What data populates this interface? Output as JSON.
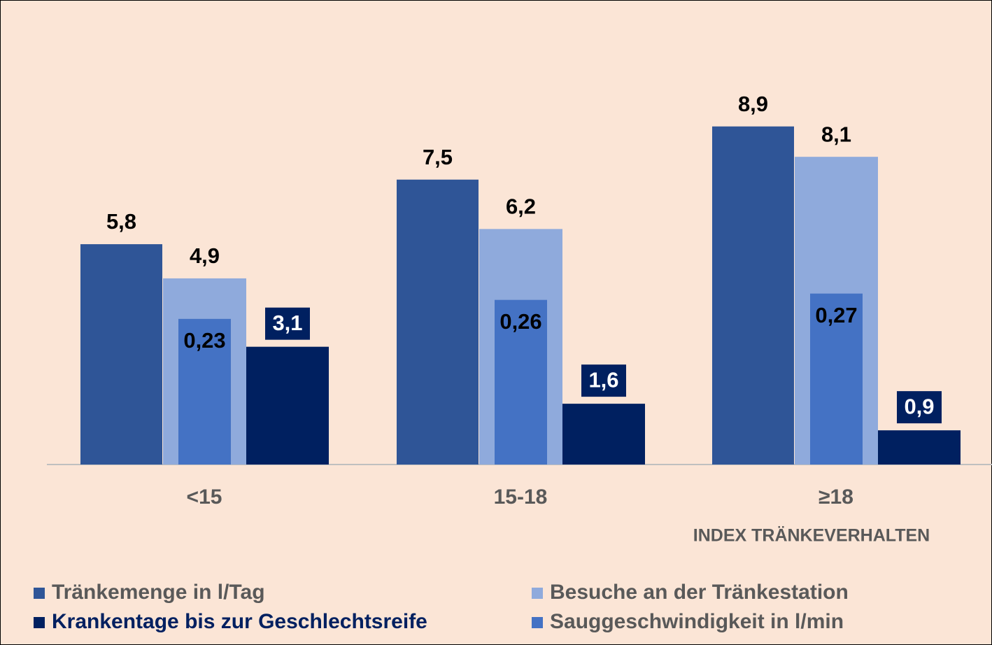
{
  "chart_data": {
    "type": "bar",
    "categories": [
      "<15",
      "15-18",
      "≥18"
    ],
    "x_label": "INDEX TRÄNKEVERHALTEN",
    "ylim": [
      0,
      10
    ],
    "y2lim": [
      0,
      0.6
    ],
    "series": [
      {
        "name": "Tränkemenge in l/Tag",
        "color": "#2f5597",
        "values": [
          5.8,
          7.5,
          8.9
        ],
        "value_labels": [
          "5,8",
          "7,5",
          "8,9"
        ]
      },
      {
        "name": "Besuche an der Tränkestation",
        "color": "#8faadc",
        "values": [
          4.9,
          6.2,
          8.1
        ],
        "value_labels": [
          "4,9",
          "6,2",
          "8,1"
        ]
      },
      {
        "name": "Sauggeschwindigkeit in l/min",
        "color": "#4472c4",
        "axis": "y2",
        "values": [
          0.23,
          0.26,
          0.27
        ],
        "value_labels": [
          "0,23",
          "0,26",
          "0,27"
        ]
      },
      {
        "name": "Krankentage bis zur Geschlechtsreife",
        "color": "#002060",
        "values": [
          3.1,
          1.6,
          0.9
        ],
        "value_labels": [
          "3,1",
          "1,6",
          "0,9"
        ]
      }
    ]
  }
}
